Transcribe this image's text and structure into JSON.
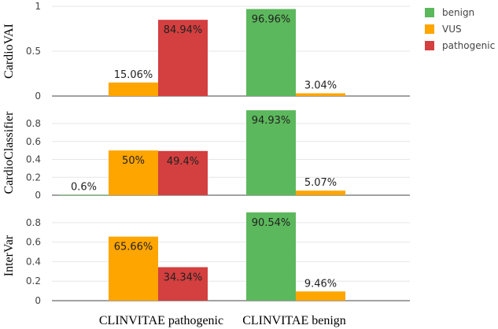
{
  "chart_data": {
    "type": "bar",
    "categories": [
      "CLINVITAE pathogenic",
      "CLINVITAE benign"
    ],
    "legend": {
      "placement": "top-right",
      "entries": [
        {
          "name": "benign",
          "color": "#5cb85c"
        },
        {
          "name": "VUS",
          "color": "#ffa500"
        },
        {
          "name": "pathogenic",
          "color": "#d43f3f"
        }
      ]
    },
    "panels": [
      {
        "ylabel": "CardioVAI",
        "ylim": [
          0,
          1
        ],
        "yticks": [
          0,
          0.5,
          1
        ],
        "ytick_labels": [
          "0",
          "0.5",
          "1"
        ],
        "series": [
          {
            "name": "benign",
            "values": [
              0,
              0.9696
            ],
            "labels": [
              "",
              "96.96%"
            ]
          },
          {
            "name": "VUS",
            "values": [
              0.1506,
              0.0304
            ],
            "labels": [
              "15.06%",
              "3.04%"
            ]
          },
          {
            "name": "pathogenic",
            "values": [
              0.8494,
              0
            ],
            "labels": [
              "84.94%",
              ""
            ]
          }
        ]
      },
      {
        "ylabel": "CardioClassifier",
        "ylim": [
          0,
          0.95
        ],
        "yticks": [
          0,
          0.2,
          0.4,
          0.6,
          0.8
        ],
        "ytick_labels": [
          "0",
          "0.2",
          "0.4",
          "0.6",
          "0.8"
        ],
        "series": [
          {
            "name": "benign",
            "values": [
              0.006,
              0.9493
            ],
            "labels": [
              "0.6%",
              "94.93%"
            ]
          },
          {
            "name": "VUS",
            "values": [
              0.5,
              0.0507
            ],
            "labels": [
              "50%",
              "5.07%"
            ]
          },
          {
            "name": "pathogenic",
            "values": [
              0.494,
              0
            ],
            "labels": [
              "49.4%",
              ""
            ]
          }
        ]
      },
      {
        "ylabel": "InterVar",
        "ylim": [
          0,
          0.92
        ],
        "yticks": [
          0,
          0.2,
          0.4,
          0.6,
          0.8
        ],
        "ytick_labels": [
          "0",
          "0.2",
          "0.4",
          "0.6",
          "0.8"
        ],
        "series": [
          {
            "name": "benign",
            "values": [
              0,
              0.9054
            ],
            "labels": [
              "",
              "90.54%"
            ]
          },
          {
            "name": "VUS",
            "values": [
              0.6566,
              0.0946
            ],
            "labels": [
              "65.66%",
              "9.46%"
            ]
          },
          {
            "name": "pathogenic",
            "values": [
              0.3434,
              0
            ],
            "labels": [
              "34.34%",
              ""
            ]
          }
        ]
      }
    ]
  }
}
